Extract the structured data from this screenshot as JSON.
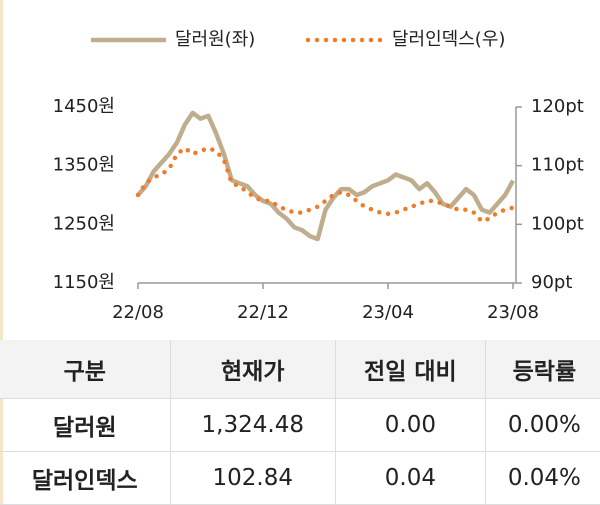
{
  "chart_data": {
    "type": "line",
    "categories": [
      "22/08",
      null,
      null,
      null,
      null,
      null,
      null,
      null,
      null,
      null,
      null,
      null,
      null,
      null,
      null,
      null,
      "22/12",
      null,
      null,
      null,
      null,
      null,
      null,
      null,
      null,
      null,
      null,
      null,
      null,
      null,
      null,
      null,
      "23/04",
      null,
      null,
      null,
      null,
      null,
      null,
      null,
      null,
      null,
      null,
      null,
      null,
      null,
      null,
      null,
      "23/08"
    ],
    "series": [
      {
        "name": "달러원(좌)",
        "color": "#bfae8e",
        "dash": "solid",
        "axis": "y",
        "values": [
          1300,
          1315,
          1340,
          1355,
          1370,
          1390,
          1420,
          1440,
          1430,
          1435,
          1405,
          1370,
          1325,
          1320,
          1315,
          1300,
          1290,
          1285,
          1270,
          1260,
          1245,
          1240,
          1230,
          1225,
          1275,
          1295,
          1310,
          1310,
          1300,
          1305,
          1315,
          1320,
          1325,
          1335,
          1330,
          1325,
          1310,
          1320,
          1305,
          1285,
          1280,
          1295,
          1310,
          1300,
          1275,
          1270,
          1285,
          1300,
          1324.48
        ]
      },
      {
        "name": "달러인덱스(우)",
        "color": "#f07c28",
        "dash": "dotted",
        "axis": "y2",
        "values": [
          105,
          107,
          108,
          108.5,
          109.5,
          112,
          113,
          112,
          112.5,
          113,
          112.5,
          111,
          107,
          106.5,
          105.5,
          104.5,
          104,
          104,
          103,
          102.5,
          102,
          102,
          102.5,
          103,
          104,
          105,
          105.5,
          105,
          104,
          103,
          102.5,
          102,
          101.8,
          102,
          102.5,
          103,
          103.5,
          104,
          104,
          103.5,
          103,
          102.5,
          102.5,
          102,
          100.5,
          101,
          102,
          102.5,
          102.84
        ]
      }
    ],
    "ylim": [
      1150,
      1450
    ],
    "yticks": [
      {
        "value": 1150,
        "label": "1150원"
      },
      {
        "value": 1250,
        "label": "1250원"
      },
      {
        "value": 1350,
        "label": "1350원"
      },
      {
        "value": 1450,
        "label": "1450원"
      }
    ],
    "y2lim": [
      90,
      120
    ],
    "y2ticks": [
      {
        "value": 90,
        "label": "90pt"
      },
      {
        "value": 100,
        "label": "100pt"
      },
      {
        "value": 110,
        "label": "110pt"
      },
      {
        "value": 120,
        "label": "120pt"
      }
    ],
    "grid": false
  },
  "table": {
    "headers": [
      "구분",
      "현재가",
      "전일 대비",
      "등락률"
    ],
    "rows": [
      [
        "달러원",
        "1,324.48",
        "0.00",
        "0.00%"
      ],
      [
        "달러인덱스",
        "102.84",
        "0.04",
        "0.04%"
      ]
    ]
  }
}
